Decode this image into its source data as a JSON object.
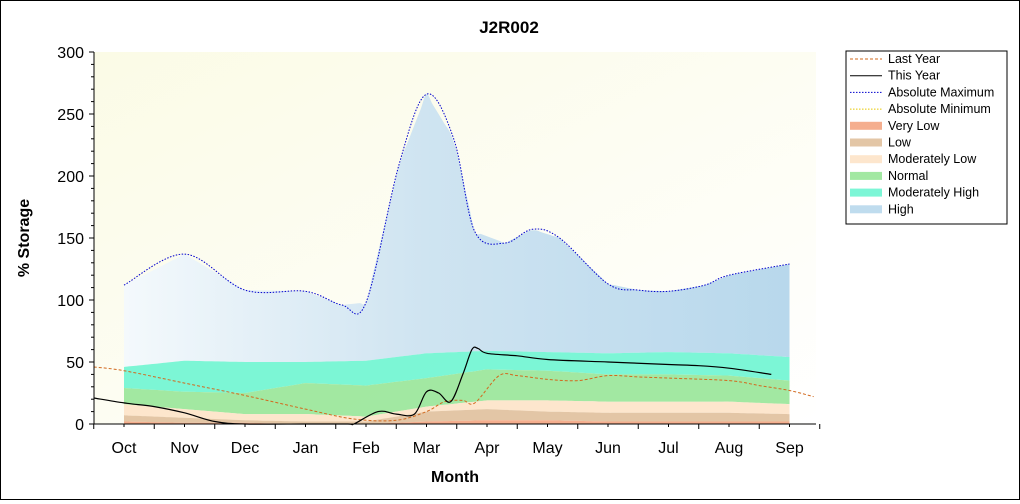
{
  "chart_data": {
    "type": "area",
    "title": "J2R002",
    "xlabel": "Month",
    "ylabel": "% Storage",
    "ylim": [
      0,
      300
    ],
    "yticks": [
      0,
      50,
      100,
      150,
      200,
      250,
      300
    ],
    "categories": [
      "Oct",
      "Nov",
      "Dec",
      "Jan",
      "Feb",
      "Mar",
      "Apr",
      "May",
      "Jun",
      "Jul",
      "Aug",
      "Sep"
    ],
    "legend_position": "right",
    "legend": [
      {
        "label": "Last Year",
        "style": "dashed-line",
        "color": "#d2691e"
      },
      {
        "label": "This Year",
        "style": "line",
        "color": "#000000"
      },
      {
        "label": "Absolute Maximum",
        "style": "dotted-line",
        "color": "#0000cd"
      },
      {
        "label": "Absolute Minimum",
        "style": "dotted-line",
        "color": "#e6c800"
      },
      {
        "label": "Very Low",
        "style": "band",
        "color": "#f4a582"
      },
      {
        "label": "Low",
        "style": "band",
        "color": "#e0c09c"
      },
      {
        "label": "Moderately Low",
        "style": "band",
        "color": "#fde3c8"
      },
      {
        "label": "Normal",
        "style": "band",
        "color": "#98e698"
      },
      {
        "label": "Moderately High",
        "style": "band",
        "color": "#6ef5d2"
      },
      {
        "label": "High",
        "style": "band",
        "color": "#b8d8ec"
      }
    ],
    "series": [
      {
        "name": "Absolute Maximum",
        "color": "#0000cd",
        "x": [
          0,
          1,
          2,
          3,
          3.6,
          4,
          4.55,
          5,
          5.45,
          5.8,
          6.3,
          6.75,
          7.2,
          8,
          8.5,
          9,
          9.6,
          10,
          11
        ],
        "values": [
          112,
          137,
          108,
          107,
          96,
          98,
          210,
          266,
          230,
          155,
          146,
          157,
          150,
          113,
          108,
          107,
          112,
          120,
          129
        ]
      },
      {
        "name": "High lower bound",
        "color": "#6ef5d2",
        "x": [
          0,
          1,
          2,
          3,
          4,
          5,
          6,
          7,
          8,
          9,
          10,
          11
        ],
        "values": [
          46,
          51,
          50,
          50,
          51,
          57,
          59,
          58,
          57,
          58,
          57,
          54
        ]
      },
      {
        "name": "Moderately High lower bound",
        "color": "#98e698",
        "x": [
          0,
          1,
          2,
          3,
          4,
          5,
          6,
          7,
          8,
          9,
          10,
          11
        ],
        "values": [
          29,
          26,
          25,
          33,
          31,
          37,
          44,
          43,
          40,
          40,
          39,
          35
        ]
      },
      {
        "name": "Normal lower bound",
        "color": "#fde3c8",
        "x": [
          0,
          1,
          2,
          3,
          4,
          5,
          6,
          7,
          8,
          9,
          10,
          11
        ],
        "values": [
          16,
          12,
          8,
          8,
          6,
          14,
          19,
          19,
          18,
          18,
          18,
          16
        ]
      },
      {
        "name": "Moderately Low lower bound",
        "color": "#e0c09c",
        "x": [
          0,
          1,
          2,
          3,
          4,
          5,
          6,
          7,
          8,
          9,
          10,
          11
        ],
        "values": [
          7,
          5,
          3,
          2,
          2,
          10,
          12,
          10,
          9,
          9,
          9,
          8
        ]
      },
      {
        "name": "Low lower bound",
        "color": "#f4a582",
        "x": [
          0,
          1,
          2,
          3,
          4,
          5,
          6,
          7,
          8,
          9,
          10,
          11
        ],
        "values": [
          2,
          1,
          1,
          0,
          0,
          2,
          3,
          3,
          2,
          2,
          2,
          2
        ]
      },
      {
        "name": "Absolute Minimum",
        "color": "#e6c800",
        "x": [
          0,
          11
        ],
        "values": [
          0,
          0
        ]
      },
      {
        "name": "Last Year",
        "color": "#d2691e",
        "x": [
          -0.5,
          0,
          1,
          2,
          3,
          3.8,
          4.5,
          5,
          5.3,
          5.6,
          5.8,
          6.2,
          6.5,
          7,
          7.5,
          8,
          8.5,
          9,
          10,
          10.5,
          11,
          11.4
        ],
        "values": [
          46,
          43,
          33,
          23,
          12,
          4,
          3,
          10,
          18,
          19,
          17,
          39,
          39,
          36,
          35,
          39,
          38,
          37,
          35,
          31,
          27,
          22
        ]
      },
      {
        "name": "This Year",
        "color": "#000000",
        "x": [
          -0.5,
          0,
          0.5,
          1,
          1.5,
          2,
          3,
          3.7,
          3.8,
          4.2,
          4.5,
          4.8,
          5,
          5.2,
          5.4,
          5.6,
          5.75,
          5.85,
          6,
          6.5,
          7,
          8,
          9,
          9.5,
          10,
          10.7
        ],
        "values": [
          21,
          17,
          14,
          9,
          2,
          0,
          0,
          0,
          0,
          10,
          8,
          8,
          26,
          25,
          18,
          40,
          60,
          61,
          57,
          55,
          52,
          50,
          48,
          47,
          45,
          40
        ]
      }
    ]
  }
}
